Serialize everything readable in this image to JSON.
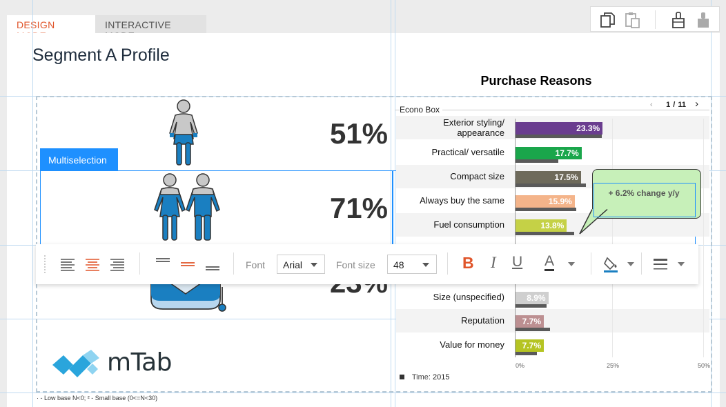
{
  "tabs": {
    "design": "DESIGN MODE",
    "interactive": "INTERACTIVE MODE"
  },
  "top_toolbar": {
    "icons": [
      "copy-icon",
      "paste-icon",
      "format-painter-icon",
      "format-painter-disabled-icon"
    ]
  },
  "page_title": "Segment A Profile",
  "segments": [
    {
      "icon": "woman-icon",
      "percent": "51%"
    },
    {
      "icon": "couple-icon",
      "percent": "71%"
    },
    {
      "icon": "car-icon",
      "percent": "23%"
    }
  ],
  "multiselection_label": "Multiselection",
  "chart_data": {
    "type": "bar",
    "orientation": "horizontal",
    "title": "Purchase Reasons",
    "legend_group": "Econo Box",
    "pager": {
      "current": "1",
      "sep": "/",
      "total": "11"
    },
    "categories": [
      "Exterior styling/ appearance",
      "Practical/ versatile",
      "Compact size",
      "Always buy the same",
      "Fuel consumption",
      "Size (unspecified)",
      "Reputation",
      "Value for money"
    ],
    "values": [
      23.3,
      17.7,
      17.5,
      15.9,
      13.8,
      8.9,
      7.7,
      7.7
    ],
    "value_labels": [
      "23.3%",
      "17.7%",
      "17.5%",
      "15.9%",
      "13.8%",
      "8.9%",
      "7.7%",
      "7.7%"
    ],
    "previous_values": [
      23,
      11.5,
      18.8,
      16.3,
      15.7,
      8.5,
      9.3,
      5.8
    ],
    "colors": [
      "#6a3d8f",
      "#1aa64b",
      "#6e6a5b",
      "#f4b48a",
      "#c5d146",
      "#cfcfcf",
      "#bc8f91",
      "#b5c423"
    ],
    "xlim": [
      0,
      50
    ],
    "x_ticks": [
      "0%",
      "25%",
      "50%"
    ],
    "series_legend": {
      "label": "Time:",
      "value": "2015"
    },
    "annotation": "+ 6.2% change y/y"
  },
  "format_toolbar": {
    "font_label": "Font",
    "font_value": "Arial",
    "font_size_label": "Font size",
    "font_size_value": "48",
    "bold": "B",
    "italic": "I",
    "underline": "U",
    "font_color": "A"
  },
  "logo": {
    "text": "mTab"
  },
  "footnote": "· - Low base N<0;   ² - Small base (0<=N<30)"
}
